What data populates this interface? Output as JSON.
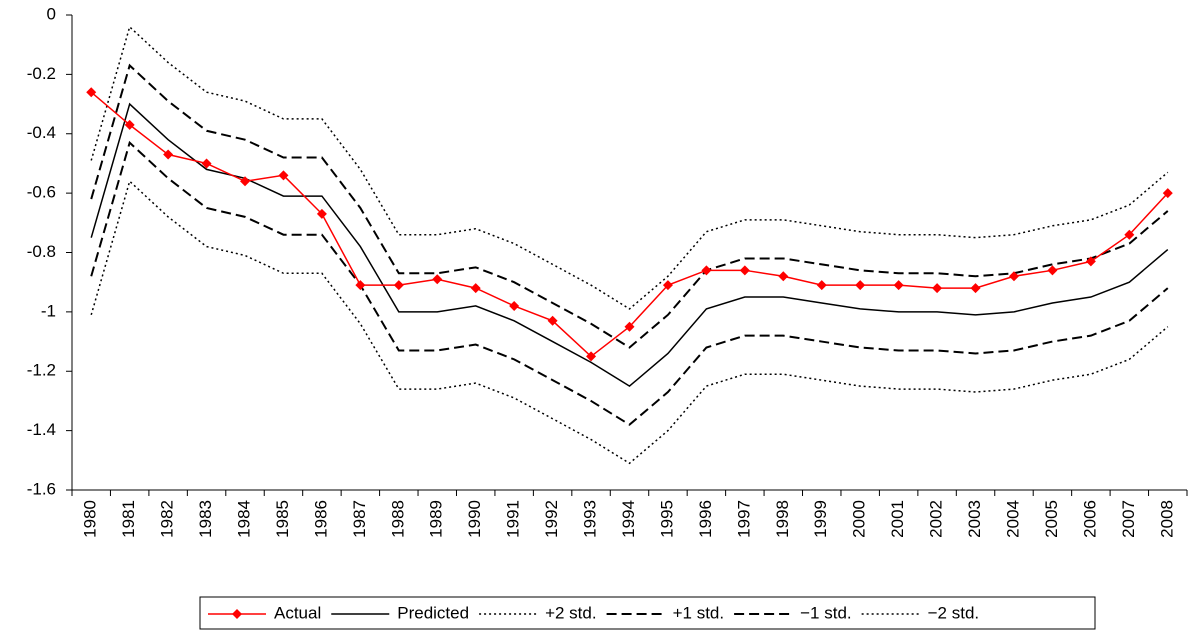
{
  "chart_data": {
    "type": "line",
    "categories": [
      "1980",
      "1981",
      "1982",
      "1983",
      "1984",
      "1985",
      "1986",
      "1987",
      "1988",
      "1989",
      "1990",
      "1991",
      "1992",
      "1993",
      "1994",
      "1995",
      "1996",
      "1997",
      "1998",
      "1999",
      "2000",
      "2001",
      "2002",
      "2003",
      "2004",
      "2005",
      "2006",
      "2007",
      "2008"
    ],
    "series": [
      {
        "name": "Actual",
        "color": "#ff0000",
        "style": "solid",
        "marker": "diamond",
        "values": [
          -0.26,
          -0.37,
          -0.47,
          -0.5,
          -0.56,
          -0.54,
          -0.67,
          -0.91,
          -0.91,
          -0.89,
          -0.92,
          -0.98,
          -1.03,
          -1.15,
          -1.05,
          -0.91,
          -0.86,
          -0.86,
          -0.88,
          -0.91,
          -0.91,
          -0.91,
          -0.92,
          -0.92,
          -0.88,
          -0.86,
          -0.83,
          -0.74,
          -0.6
        ]
      },
      {
        "name": "Predicted",
        "color": "#000000",
        "style": "solid",
        "values": [
          -0.75,
          -0.3,
          -0.42,
          -0.52,
          -0.55,
          -0.61,
          -0.61,
          -0.78,
          -1.0,
          -1.0,
          -0.98,
          -1.03,
          -1.1,
          -1.17,
          -1.25,
          -1.14,
          -0.99,
          -0.95,
          -0.95,
          -0.97,
          -0.99,
          -1.0,
          -1.0,
          -1.01,
          -1.0,
          -0.97,
          -0.95,
          -0.9,
          -0.79
        ]
      },
      {
        "name": "+2 std.",
        "color": "#000000",
        "style": "dotted",
        "values": [
          -0.49,
          -0.04,
          -0.16,
          -0.26,
          -0.29,
          -0.35,
          -0.35,
          -0.52,
          -0.74,
          -0.74,
          -0.72,
          -0.77,
          -0.84,
          -0.91,
          -0.99,
          -0.88,
          -0.73,
          -0.69,
          -0.69,
          -0.71,
          -0.73,
          -0.74,
          -0.74,
          -0.75,
          -0.74,
          -0.71,
          -0.69,
          -0.64,
          -0.53
        ]
      },
      {
        "name": "+1 std.",
        "color": "#000000",
        "style": "dashed",
        "values": [
          -0.62,
          -0.17,
          -0.29,
          -0.39,
          -0.42,
          -0.48,
          -0.48,
          -0.65,
          -0.87,
          -0.87,
          -0.85,
          -0.9,
          -0.97,
          -1.04,
          -1.12,
          -1.01,
          -0.86,
          -0.82,
          -0.82,
          -0.84,
          -0.86,
          -0.87,
          -0.87,
          -0.88,
          -0.87,
          -0.84,
          -0.82,
          -0.77,
          -0.66
        ]
      },
      {
        "name": "−1 std.",
        "color": "#000000",
        "style": "dashed",
        "values": [
          -0.88,
          -0.43,
          -0.55,
          -0.65,
          -0.68,
          -0.74,
          -0.74,
          -0.91,
          -1.13,
          -1.13,
          -1.11,
          -1.16,
          -1.23,
          -1.3,
          -1.38,
          -1.27,
          -1.12,
          -1.08,
          -1.08,
          -1.1,
          -1.12,
          -1.13,
          -1.13,
          -1.14,
          -1.13,
          -1.1,
          -1.08,
          -1.03,
          -0.92
        ]
      },
      {
        "name": "−2 std.",
        "color": "#000000",
        "style": "dotted",
        "values": [
          -1.01,
          -0.56,
          -0.68,
          -0.78,
          -0.81,
          -0.87,
          -0.87,
          -1.04,
          -1.26,
          -1.26,
          -1.24,
          -1.29,
          -1.36,
          -1.43,
          -1.51,
          -1.4,
          -1.25,
          -1.21,
          -1.21,
          -1.23,
          -1.25,
          -1.26,
          -1.26,
          -1.27,
          -1.26,
          -1.23,
          -1.21,
          -1.16,
          -1.05
        ]
      }
    ],
    "ylim": [
      -1.6,
      0
    ],
    "yticks": [
      0,
      -0.2,
      -0.4,
      -0.6,
      -0.8,
      -1,
      -1.2,
      -1.4,
      -1.6
    ],
    "grid": false,
    "legend": "bottom"
  }
}
